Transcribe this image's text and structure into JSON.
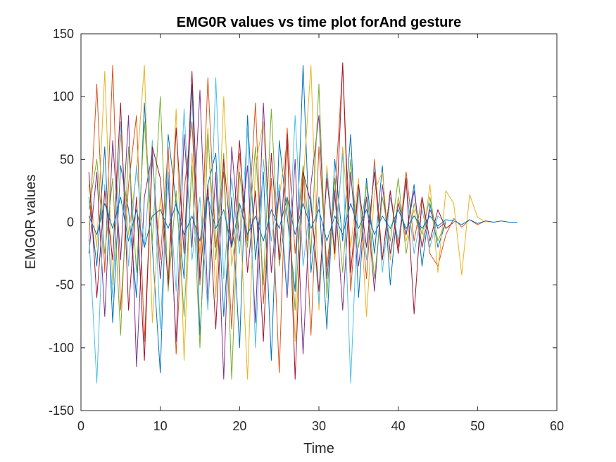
{
  "chart_data": {
    "type": "line",
    "title": "EMG0R values vs time plot forAnd gesture",
    "xlabel": "Time",
    "ylabel": "EMG0R values",
    "xlim": [
      0,
      60
    ],
    "ylim": [
      -150,
      150
    ],
    "xticks": [
      0,
      10,
      20,
      30,
      40,
      50,
      60
    ],
    "yticks": [
      -150,
      -100,
      -50,
      0,
      50,
      100,
      150
    ],
    "xtick_labels": [
      "0",
      "10",
      "20",
      "30",
      "40",
      "50",
      "60"
    ],
    "ytick_labels": [
      "-150",
      "-100",
      "-50",
      "0",
      "50",
      "100",
      "150"
    ],
    "grid": false,
    "legend": "none",
    "series_colors": [
      "#0072BD",
      "#D95319",
      "#EDB120",
      "#7E2F8E",
      "#77AC30",
      "#4DBEEE",
      "#A2142F"
    ],
    "series": [
      {
        "values": [
          20,
          -35,
          60,
          -80,
          45,
          10,
          -60,
          95,
          -20,
          -120,
          70,
          15,
          -45,
          110,
          -90,
          30,
          55,
          -75,
          20,
          -100,
          85,
          -30,
          40,
          -110,
          65,
          5,
          -55,
          125,
          -40,
          20,
          -85,
          50,
          -15,
          70,
          -60,
          35,
          -25,
          45,
          -50,
          20,
          -10,
          30,
          -35,
          15,
          -20,
          0
        ]
      },
      {
        "values": [
          -15,
          110,
          -40,
          125,
          -70,
          30,
          85,
          -95,
          50,
          -30,
          60,
          -105,
          25,
          80,
          -50,
          115,
          -20,
          40,
          -85,
          55,
          -15,
          95,
          -65,
          35,
          -120,
          75,
          -25,
          45,
          -90,
          60,
          -35,
          20,
          125,
          -55,
          30,
          -45,
          50,
          -30,
          25,
          -20,
          40,
          -15,
          20,
          -25,
          -35,
          -10,
          3,
          -4,
          2,
          -2,
          1,
          0
        ]
      },
      {
        "values": [
          30,
          -20,
          120,
          -50,
          70,
          -10,
          40,
          125,
          -80,
          20,
          -45,
          90,
          -110,
          55,
          -25,
          75,
          -60,
          100,
          -35,
          15,
          -125,
          45,
          80,
          -40,
          20,
          65,
          -95,
          30,
          125,
          -70,
          45,
          -30,
          60,
          -20,
          35,
          -75,
          25,
          40,
          -30,
          20,
          -15,
          10,
          -20,
          30,
          -40,
          25,
          15,
          -42,
          22,
          4,
          0
        ]
      },
      {
        "values": [
          -25,
          40,
          -75,
          65,
          -30,
          85,
          -115,
          20,
          55,
          -45,
          35,
          -95,
          70,
          -20,
          105,
          -65,
          40,
          -125,
          60,
          -15,
          45,
          -80,
          95,
          -40,
          25,
          -60,
          50,
          -105,
          30,
          85,
          -45,
          25,
          -70,
          40,
          -35,
          20,
          -55,
          30,
          -25,
          15,
          -10,
          25,
          -20,
          10,
          -5,
          0
        ]
      },
      {
        "values": [
          10,
          50,
          -25,
          35,
          -90,
          60,
          -40,
          80,
          -15,
          100,
          -55,
          25,
          -75,
          45,
          -100,
          70,
          -30,
          55,
          -125,
          40,
          -20,
          60,
          -50,
          90,
          -35,
          20,
          -70,
          45,
          -25,
          110,
          -60,
          35,
          -40,
          50,
          -20,
          30,
          -45,
          20,
          -15,
          35,
          -25,
          15,
          -10,
          20,
          -15,
          0
        ]
      },
      {
        "values": [
          -10,
          -128,
          30,
          -60,
          80,
          -35,
          45,
          -20,
          65,
          -85,
          40,
          -55,
          90,
          -30,
          20,
          -70,
          115,
          -45,
          35,
          -25,
          75,
          -100,
          50,
          -15,
          30,
          -55,
          85,
          -35,
          20,
          -65,
          40,
          -20,
          55,
          -128,
          25,
          -30,
          45,
          -40,
          20,
          -15,
          30,
          -25,
          10,
          -20,
          5,
          0
        ]
      },
      {
        "values": [
          40,
          -60,
          25,
          -30,
          95,
          -70,
          20,
          -110,
          60,
          35,
          -50,
          75,
          -25,
          120,
          -45,
          30,
          -85,
          50,
          -20,
          65,
          -40,
          25,
          -95,
          55,
          -30,
          70,
          -125,
          40,
          15,
          -55,
          35,
          -25,
          127,
          -40,
          30,
          -20,
          40,
          -30,
          25,
          -25,
          35,
          -73,
          20,
          -15,
          10,
          -5,
          0
        ]
      },
      {
        "values": [
          5,
          -10,
          15,
          -5,
          20,
          -15,
          10,
          -20,
          5,
          10,
          -5,
          15,
          -10,
          5,
          -15,
          20,
          -5,
          10,
          -20,
          15,
          -10,
          5,
          -15,
          10,
          -5,
          20,
          -10,
          15,
          -5,
          10,
          -15,
          5,
          -10,
          15,
          -5,
          10,
          -10,
          5,
          -5,
          10,
          -5,
          5,
          -5,
          5,
          -3,
          2,
          1,
          -2,
          2,
          -1,
          1,
          0,
          1,
          0,
          0
        ]
      }
    ]
  }
}
